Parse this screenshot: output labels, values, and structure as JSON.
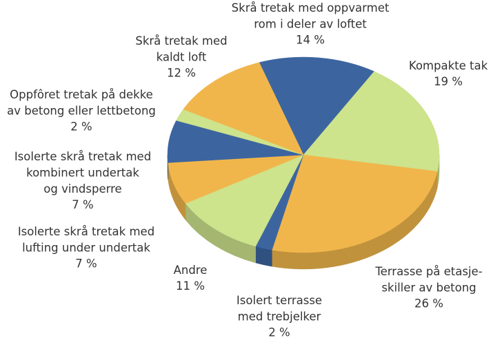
{
  "chart_data": {
    "type": "pie3d",
    "categories": [
      "Skrå tretak med oppvarmet\nrom i deler av loftet",
      "Kompakte tak",
      "Terrasse på etasje-\nskiller av betong",
      "Isolert terrasse\nmed trebjelker",
      "Andre",
      "Isolerte skrå tretak med\nlufting under undertak",
      "Isolerte skrå tretak med\nkombinert undertak\nog vindsperre",
      "Oppfôret tretak på dekke\nav betong eller lettbetong",
      "Skrå tretak med\nkaldt loft"
    ],
    "values": [
      14,
      19,
      26,
      2,
      11,
      7,
      7,
      2,
      12
    ],
    "value_labels": [
      "14 %",
      "19 %",
      "26 %",
      "2 %",
      "11 %",
      "7 %",
      "7 %",
      "2 %",
      "12 %"
    ],
    "colors": [
      "#3c65a0",
      "#cde38c",
      "#f1b64b",
      "#3c65a0",
      "#cde38c",
      "#f1b64b",
      "#3c65a0",
      "#cde38c",
      "#f1b64b"
    ]
  }
}
